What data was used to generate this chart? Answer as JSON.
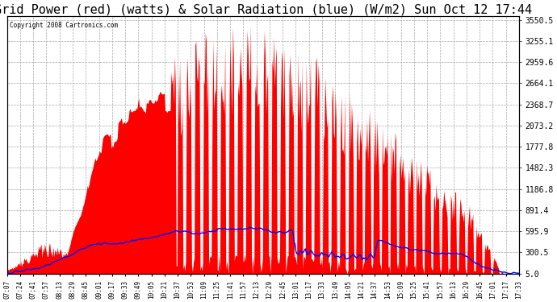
{
  "title": "Grid Power (red) (watts) & Solar Radiation (blue) (W/m2) Sun Oct 12 17:44",
  "copyright": "Copyright 2008 Cartronics.com",
  "yticks": [
    5.0,
    300.5,
    595.9,
    891.4,
    1186.8,
    1482.3,
    1777.8,
    2073.2,
    2368.7,
    2664.1,
    2959.6,
    3255.1,
    3550.5
  ],
  "ymin": 0,
  "ymax": 3600,
  "title_fontsize": 11,
  "bg_color": "#ffffff",
  "grid_color": "#aaaaaa",
  "fill_color_red": "#ff0000",
  "line_color_blue": "#0000ff",
  "xtick_labels": [
    "07:07",
    "07:24",
    "07:41",
    "07:57",
    "08:13",
    "08:29",
    "08:45",
    "09:01",
    "09:17",
    "09:33",
    "09:49",
    "10:05",
    "10:21",
    "10:37",
    "10:53",
    "11:09",
    "11:25",
    "11:41",
    "11:57",
    "12:13",
    "12:29",
    "12:45",
    "13:01",
    "13:17",
    "13:33",
    "13:49",
    "14:05",
    "14:21",
    "14:37",
    "14:53",
    "15:09",
    "15:25",
    "15:41",
    "15:57",
    "16:13",
    "16:29",
    "16:45",
    "17:01",
    "17:17",
    "17:33"
  ]
}
